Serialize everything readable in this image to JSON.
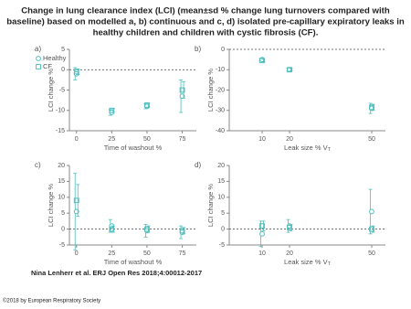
{
  "title_lines": [
    "Change in lung clearance index (LCI) (mean±sd % change lung turnovers compared with",
    "baseline) based on modelled a, b) continuous and c, d) isolated pre-capillary expiratory leaks in",
    "healthy children and children with cystic fibrosis (CF)."
  ],
  "citation": "Nina Lenherr et al. ERJ Open Res 2018;4:00012-2017",
  "copyright": "©2018 by European Respiratory Society",
  "chart_data": [
    {
      "type": "scatter",
      "panel": "a)",
      "x": [
        0,
        25,
        50,
        75
      ],
      "xlabel": "Time of washout %",
      "ylabel": "LCI change %",
      "xlim": [
        -5,
        85
      ],
      "ylim": [
        -15,
        5
      ],
      "xticks": [
        0,
        25,
        50,
        75
      ],
      "yticks": [
        -15,
        -10,
        -5,
        0,
        5
      ],
      "color": "#4dbdbd",
      "legend": "upper left",
      "series": [
        {
          "name": "Healthy",
          "marker": "circle",
          "values": [
            -1,
            -10.5,
            -9,
            -6.5
          ],
          "errors": [
            1.5,
            0.7,
            0.6,
            4
          ]
        },
        {
          "name": "CF",
          "marker": "square",
          "values": [
            -0.5,
            -10,
            -8.7,
            -5
          ],
          "errors": [
            0.7,
            0.5,
            0.5,
            2
          ]
        }
      ]
    },
    {
      "type": "scatter",
      "panel": "b)",
      "x": [
        10,
        20,
        50
      ],
      "xlabel": "Leak size % V",
      "xlabel_sub": "T",
      "ylabel": "LCI change %",
      "xlim": [
        -2,
        55
      ],
      "ylim": [
        -40,
        0
      ],
      "xticks": [
        10,
        20,
        50
      ],
      "yticks": [
        -40,
        -30,
        -20,
        -10,
        0
      ],
      "color": "#4dbdbd",
      "series": [
        {
          "marker": "circle",
          "values": [
            -5,
            -10,
            -29
          ],
          "errors": [
            0.5,
            0.7,
            2.5
          ]
        },
        {
          "marker": "square",
          "values": [
            -5.5,
            -10,
            -28.5
          ],
          "errors": [
            0.6,
            0.6,
            1.5
          ]
        }
      ]
    },
    {
      "type": "scatter",
      "panel": "c)",
      "x": [
        0,
        25,
        50,
        75
      ],
      "xlabel": "Time of washout %",
      "ylabel": "LCI change %",
      "xlim": [
        -5,
        85
      ],
      "ylim": [
        -5,
        20
      ],
      "xticks": [
        0,
        25,
        50,
        75
      ],
      "yticks": [
        -5,
        0,
        5,
        10,
        15,
        20
      ],
      "color": "#4dbdbd",
      "series": [
        {
          "marker": "circle",
          "values": [
            5.5,
            1,
            -0.5,
            -1
          ],
          "errors": [
            12,
            2,
            2,
            2
          ]
        },
        {
          "marker": "square",
          "values": [
            9,
            0,
            0,
            -0.5
          ],
          "errors": [
            5,
            1,
            1,
            1
          ]
        }
      ]
    },
    {
      "type": "scatter",
      "panel": "d)",
      "x": [
        10,
        20,
        50
      ],
      "xlabel": "Leak size % V",
      "xlabel_sub": "T",
      "ylabel": "LCI change %",
      "xlim": [
        -2,
        55
      ],
      "ylim": [
        -5,
        20
      ],
      "xticks": [
        10,
        20,
        50
      ],
      "yticks": [
        -5,
        0,
        5,
        10,
        15,
        20
      ],
      "color": "#4dbdbd",
      "series": [
        {
          "marker": "circle",
          "values": [
            -1.5,
            1,
            5.5
          ],
          "errors": [
            4,
            2,
            7
          ]
        },
        {
          "marker": "square",
          "values": [
            1,
            0.5,
            0
          ],
          "errors": [
            1.5,
            1,
            1
          ]
        }
      ]
    }
  ]
}
